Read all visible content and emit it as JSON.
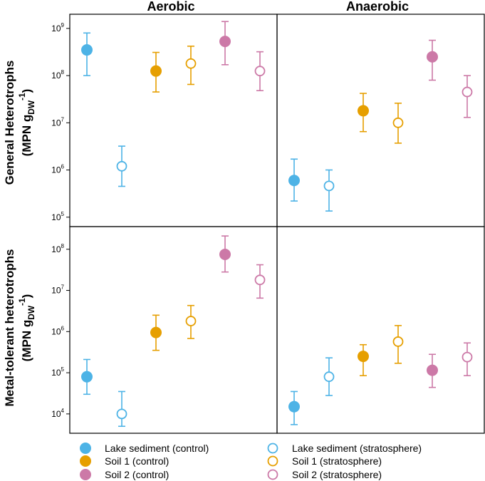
{
  "chart_data": {
    "type": "scatter",
    "y_scale": "log",
    "column_titles": [
      "Aerobic",
      "Anaerobic"
    ],
    "row_titles": [
      {
        "line1": "General Heterotrophs",
        "line2": "(MPN g",
        "sub": "DW",
        "sup": "-1",
        "close": ")"
      },
      {
        "line1": "Metal-tolerant heterotrophs",
        "line2": "(MPN g",
        "sub": "DW",
        "sup": "-1",
        "close": ")"
      }
    ],
    "series": [
      {
        "name": "Lake sediment (control)",
        "color": "#4db3e6",
        "filled": true
      },
      {
        "name": "Lake sediment (stratosphere)",
        "color": "#4db3e6",
        "filled": false
      },
      {
        "name": "Soil 1 (control)",
        "color": "#e69f00",
        "filled": true
      },
      {
        "name": "Soil 1 (stratosphere)",
        "color": "#e69f00",
        "filled": false
      },
      {
        "name": "Soil 2 (control)",
        "color": "#cc79a7",
        "filled": true
      },
      {
        "name": "Soil 2 (stratosphere)",
        "color": "#cc79a7",
        "filled": false
      }
    ],
    "panels": [
      {
        "row": 0,
        "col": 0,
        "ylim_log10": [
          4.8,
          9.3
        ],
        "yticks_exp": [
          5,
          6,
          7,
          8,
          9
        ],
        "points": [
          {
            "series": 0,
            "value": 350000000.0,
            "err_low": 100000000.0,
            "err_high": 800000000.0
          },
          {
            "series": 1,
            "value": 1200000.0,
            "err_low": 450000.0,
            "err_high": 3200000.0
          },
          {
            "series": 2,
            "value": 125000000.0,
            "err_low": 45000000.0,
            "err_high": 310000000.0
          },
          {
            "series": 3,
            "value": 180000000.0,
            "err_low": 65000000.0,
            "err_high": 420000000.0
          },
          {
            "series": 4,
            "value": 530000000.0,
            "err_low": 170000000.0,
            "err_high": 1400000000.0
          },
          {
            "series": 5,
            "value": 125000000.0,
            "err_low": 48000000.0,
            "err_high": 320000000.0
          }
        ]
      },
      {
        "row": 0,
        "col": 1,
        "ylim_log10": [
          4.8,
          9.3
        ],
        "yticks_exp": [
          5,
          6,
          7,
          8,
          9
        ],
        "points": [
          {
            "series": 0,
            "value": 600000.0,
            "err_low": 220000.0,
            "err_high": 1700000.0
          },
          {
            "series": 1,
            "value": 460000.0,
            "err_low": 135000.0,
            "err_high": 1000000.0
          },
          {
            "series": 2,
            "value": 18000000.0,
            "err_low": 6500000.0,
            "err_high": 42000000.0
          },
          {
            "series": 3,
            "value": 10000000.0,
            "err_low": 3700000.0,
            "err_high": 26000000.0
          },
          {
            "series": 4,
            "value": 250000000.0,
            "err_low": 80000000.0,
            "err_high": 560000000.0
          },
          {
            "series": 5,
            "value": 45000000.0,
            "err_low": 13000000.0,
            "err_high": 100000000.0
          }
        ]
      },
      {
        "row": 1,
        "col": 0,
        "ylim_log10": [
          3.53,
          8.55
        ],
        "yticks_exp": [
          4,
          5,
          6,
          7,
          8
        ],
        "points": [
          {
            "series": 0,
            "value": 80000.0,
            "err_low": 30000.0,
            "err_high": 210000.0
          },
          {
            "series": 1,
            "value": 10000.0,
            "err_low": 5000.0,
            "err_high": 35000.0
          },
          {
            "series": 2,
            "value": 950000.0,
            "err_low": 350000.0,
            "err_high": 2500000.0
          },
          {
            "series": 3,
            "value": 1800000.0,
            "err_low": 680000.0,
            "err_high": 4300000.0
          },
          {
            "series": 4,
            "value": 75000000.0,
            "err_low": 28000000.0,
            "err_high": 210000000.0
          },
          {
            "series": 5,
            "value": 18000000.0,
            "err_low": 6500000.0,
            "err_high": 42000000.0
          }
        ]
      },
      {
        "row": 1,
        "col": 1,
        "ylim_log10": [
          3.53,
          8.55
        ],
        "yticks_exp": [
          4,
          5,
          6,
          7,
          8
        ],
        "points": [
          {
            "series": 0,
            "value": 15000.0,
            "err_low": 5500.0,
            "err_high": 35000.0
          },
          {
            "series": 1,
            "value": 80000.0,
            "err_low": 28000.0,
            "err_high": 230000.0
          },
          {
            "series": 2,
            "value": 250000.0,
            "err_low": 85000.0,
            "err_high": 480000.0
          },
          {
            "series": 3,
            "value": 570000.0,
            "err_low": 170000.0,
            "err_high": 1400000.0
          },
          {
            "series": 4,
            "value": 115000.0,
            "err_low": 44000.0,
            "err_high": 280000.0
          },
          {
            "series": 5,
            "value": 240000.0,
            "err_low": 85000.0,
            "err_high": 530000.0
          }
        ]
      }
    ]
  }
}
